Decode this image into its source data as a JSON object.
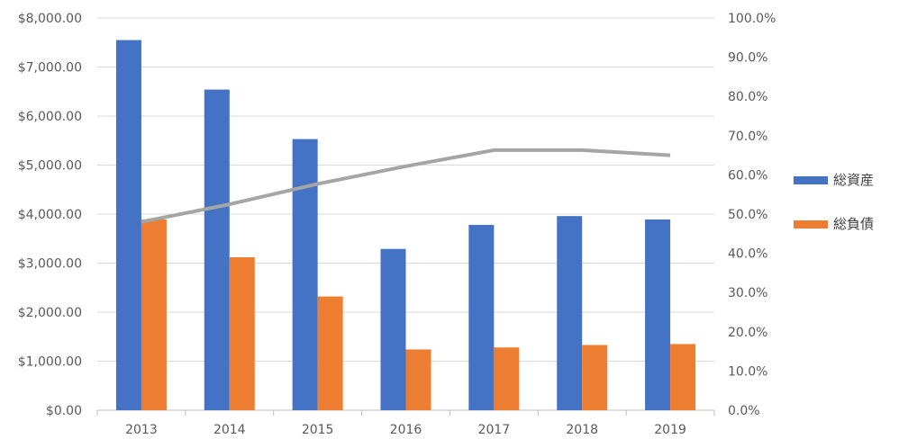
{
  "chart_data": {
    "type": "bar",
    "categories": [
      "2013",
      "2014",
      "2015",
      "2016",
      "2017",
      "2018",
      "2019"
    ],
    "series": [
      {
        "name": "総資産",
        "kind": "bar",
        "axis": "left",
        "color": "#4472C4",
        "values": [
          7550,
          6540,
          5530,
          3290,
          3780,
          3960,
          3890
        ]
      },
      {
        "name": "総負債",
        "kind": "bar",
        "axis": "left",
        "color": "#ED7D31",
        "values": [
          3890,
          3120,
          2320,
          1240,
          1280,
          1330,
          1350
        ]
      },
      {
        "name": "",
        "kind": "line",
        "axis": "right",
        "color": "#A5A5A5",
        "values": [
          48.0,
          52.5,
          57.7,
          62.2,
          66.3,
          66.3,
          65.0
        ]
      }
    ],
    "y_left": {
      "min": 0,
      "max": 8000,
      "ticks": [
        "$0.00",
        "$1,000.00",
        "$2,000.00",
        "$3,000.00",
        "$4,000.00",
        "$5,000.00",
        "$6,000.00",
        "$7,000.00",
        "$8,000.00"
      ]
    },
    "y_right": {
      "min": 0,
      "max": 100,
      "ticks": [
        "0.0%",
        "10.0%",
        "20.0%",
        "30.0%",
        "40.0%",
        "50.0%",
        "60.0%",
        "70.0%",
        "80.0%",
        "90.0%",
        "100.0%"
      ]
    },
    "grid": true,
    "legend_position": "right",
    "legend": [
      "総資産",
      "総負債"
    ]
  }
}
